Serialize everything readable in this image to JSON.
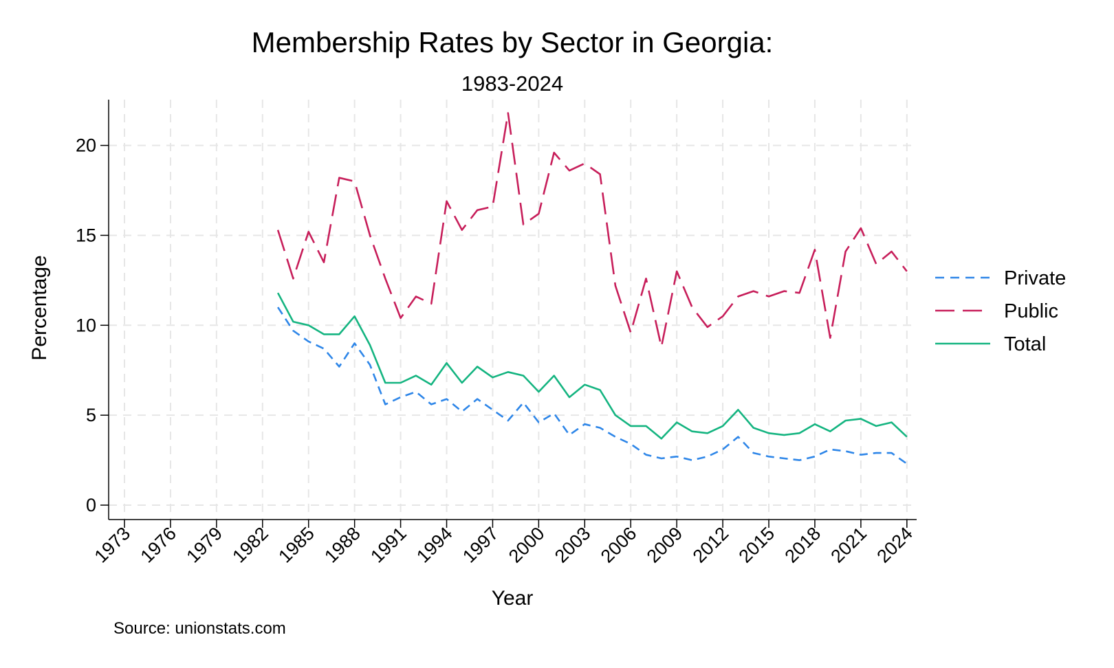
{
  "chart_data": {
    "type": "line",
    "title": "Membership Rates by Sector in Georgia:",
    "subtitle": "1983-2024",
    "xlabel": "Year",
    "ylabel": "Percentage",
    "source": "Source: unionstats.com",
    "xlim": [
      1973,
      2024
    ],
    "ylim": [
      0,
      22
    ],
    "x_ticks": [
      1973,
      1976,
      1979,
      1982,
      1985,
      1988,
      1991,
      1994,
      1997,
      2000,
      2003,
      2006,
      2009,
      2012,
      2015,
      2018,
      2021,
      2024
    ],
    "y_ticks": [
      0,
      5,
      10,
      15,
      20
    ],
    "grid": true,
    "legend_position": "right",
    "x": [
      1983,
      1984,
      1985,
      1986,
      1987,
      1988,
      1989,
      1990,
      1991,
      1992,
      1993,
      1994,
      1995,
      1996,
      1997,
      1998,
      1999,
      2000,
      2001,
      2002,
      2003,
      2004,
      2005,
      2006,
      2007,
      2008,
      2009,
      2010,
      2011,
      2012,
      2013,
      2014,
      2015,
      2016,
      2017,
      2018,
      2019,
      2020,
      2021,
      2022,
      2023,
      2024
    ],
    "series": [
      {
        "name": "Private",
        "color": "#2e86e8",
        "dash": "short",
        "values": [
          11.0,
          9.7,
          9.1,
          8.7,
          7.7,
          9.0,
          7.8,
          5.6,
          6.0,
          6.3,
          5.6,
          5.9,
          5.2,
          5.9,
          5.3,
          4.7,
          5.7,
          4.6,
          5.1,
          3.9,
          4.5,
          4.3,
          3.8,
          3.4,
          2.8,
          2.6,
          2.7,
          2.5,
          2.7,
          3.1,
          3.8,
          2.9,
          2.7,
          2.6,
          2.5,
          2.7,
          3.1,
          3.0,
          2.8,
          2.9,
          2.9,
          2.3
        ]
      },
      {
        "name": "Public",
        "color": "#c71e5a",
        "dash": "long",
        "values": [
          15.3,
          12.6,
          15.2,
          13.5,
          18.2,
          18.0,
          15.0,
          12.6,
          10.4,
          11.6,
          11.2,
          16.9,
          15.3,
          16.4,
          16.6,
          21.8,
          15.6,
          16.2,
          19.6,
          18.6,
          19.0,
          18.4,
          12.2,
          9.6,
          12.6,
          8.8,
          13.0,
          11.0,
          9.9,
          10.5,
          11.6,
          11.9,
          11.6,
          11.9,
          11.8,
          14.2,
          9.3,
          14.1,
          15.4,
          13.4,
          14.1,
          13.0
        ]
      },
      {
        "name": "Total",
        "color": "#14b480",
        "dash": "solid",
        "values": [
          11.8,
          10.2,
          10.0,
          9.5,
          9.5,
          10.5,
          8.9,
          6.8,
          6.8,
          7.2,
          6.7,
          7.9,
          6.8,
          7.7,
          7.1,
          7.4,
          7.2,
          6.3,
          7.2,
          6.0,
          6.7,
          6.4,
          5.0,
          4.4,
          4.4,
          3.7,
          4.6,
          4.1,
          4.0,
          4.4,
          5.3,
          4.3,
          4.0,
          3.9,
          4.0,
          4.5,
          4.1,
          4.7,
          4.8,
          4.4,
          4.6,
          3.8
        ]
      }
    ]
  }
}
